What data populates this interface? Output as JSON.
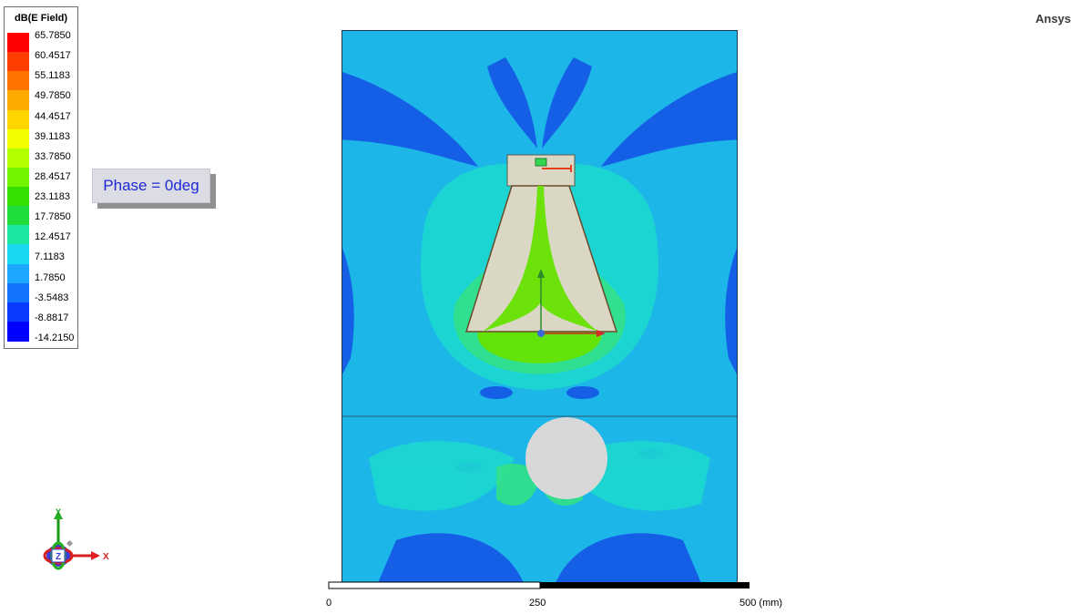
{
  "brand": "Ansys",
  "phase_label": "Phase = 0deg",
  "legend": {
    "title": "dB(E Field)",
    "levels": [
      "65.7850",
      "60.4517",
      "55.1183",
      "49.7850",
      "44.4517",
      "39.1183",
      "33.7850",
      "28.4517",
      "23.1183",
      "17.7850",
      "12.4517",
      "7.1183",
      "1.7850",
      "-3.5483",
      "-8.8817",
      "-14.2150"
    ],
    "colors": [
      "#ff0000",
      "#ff3d00",
      "#ff7300",
      "#ffaa00",
      "#ffd500",
      "#f2ff00",
      "#b3ff00",
      "#73f500",
      "#33e000",
      "#1edc3c",
      "#1ce6a0",
      "#19d8f0",
      "#1ca8ff",
      "#1473ff",
      "#0a3cff",
      "#0000ff"
    ]
  },
  "field_colors": {
    "background": "#1cb6e8",
    "deep": "#1450e6",
    "light": "#1cd8d0",
    "green": "#32e08c",
    "hot": "#66e300",
    "antenna": "#dad8c4",
    "cylinder": "#d8d8d8"
  },
  "axes_triad": {
    "y": "Y",
    "z": "Z",
    "x": "X"
  },
  "scale_bar": {
    "ticks": [
      "0",
      "250",
      "500 (mm)"
    ],
    "max_mm": 500
  }
}
